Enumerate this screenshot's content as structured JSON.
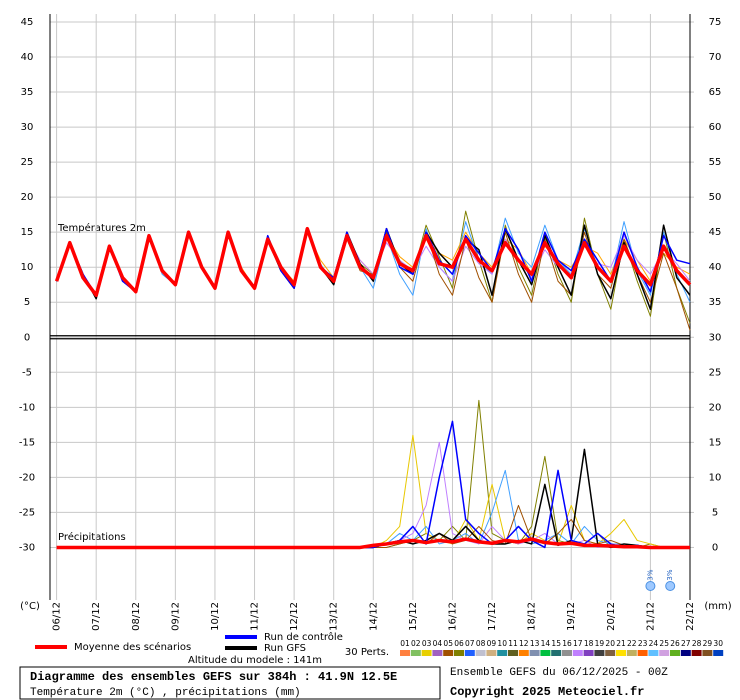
{
  "chart_data": {
    "type": "line",
    "annotations": {
      "temperature": "Températures 2m",
      "precipitation": "Précipitations"
    },
    "y_unit": "(°C)",
    "y2_unit": "(mm)",
    "grid": true,
    "x": [
      0,
      8,
      16,
      24,
      32,
      40,
      48,
      56,
      64,
      72,
      80,
      88,
      96,
      104,
      112,
      120,
      128,
      136,
      144,
      152,
      160,
      168,
      176,
      184,
      192,
      200,
      208,
      216,
      224,
      232,
      240,
      248,
      256,
      264,
      272,
      280,
      288,
      296,
      304,
      312,
      320,
      328,
      336,
      344,
      352,
      360,
      368,
      376,
      384
    ],
    "xlim": [
      -4,
      384
    ],
    "xticks": [
      {
        "value": 0,
        "label": "06/12"
      },
      {
        "value": 24,
        "label": "07/12"
      },
      {
        "value": 48,
        "label": "08/12"
      },
      {
        "value": 72,
        "label": "09/12"
      },
      {
        "value": 96,
        "label": "10/12"
      },
      {
        "value": 120,
        "label": "11/12"
      },
      {
        "value": 144,
        "label": "12/12"
      },
      {
        "value": 168,
        "label": "13/12"
      },
      {
        "value": 192,
        "label": "14/12"
      },
      {
        "value": 216,
        "label": "15/12"
      },
      {
        "value": 240,
        "label": "16/12"
      },
      {
        "value": 264,
        "label": "17/12"
      },
      {
        "value": 288,
        "label": "18/12"
      },
      {
        "value": 312,
        "label": "19/12"
      },
      {
        "value": 336,
        "label": "20/12"
      },
      {
        "value": 360,
        "label": "21/12"
      },
      {
        "value": 384,
        "label": "22/12"
      }
    ],
    "ylim": [
      -37.5,
      45
    ],
    "yticks": [
      -30,
      -25,
      -20,
      -15,
      -10,
      -5,
      0,
      5,
      10,
      15,
      20,
      25,
      30,
      35,
      40,
      45
    ],
    "y2lim": [
      -7.5,
      75
    ],
    "y2ticks": [
      0,
      5,
      10,
      15,
      20,
      25,
      30,
      35,
      40,
      45,
      50,
      55,
      60,
      65,
      70,
      75
    ],
    "series": [
      {
        "color": "#808000",
        "values": [
          8,
          13.5,
          8.5,
          6,
          13,
          8,
          6.5,
          14.5,
          9.5,
          7.5,
          15,
          10,
          7,
          15,
          9.5,
          7,
          14.5,
          10,
          7.5,
          15.5,
          10,
          8,
          14.5,
          10.5,
          9,
          15,
          11,
          9,
          16,
          11.5,
          7,
          18,
          11,
          5,
          16,
          10,
          6,
          15,
          9,
          5,
          17,
          9,
          4,
          14,
          8,
          3,
          15,
          7,
          2
        ]
      },
      {
        "color": "#ffa500",
        "values": [
          8,
          13.5,
          9,
          6,
          13,
          8.5,
          6.5,
          14,
          9.5,
          7.5,
          15,
          10,
          7,
          15,
          10,
          7,
          14,
          10,
          8,
          15,
          11,
          8.5,
          14,
          11,
          9,
          14.5,
          11.5,
          10,
          14,
          12,
          11,
          15,
          12,
          10,
          14,
          12.5,
          9,
          13,
          11,
          10,
          13,
          12,
          9,
          14,
          11,
          8,
          12,
          10,
          9
        ]
      },
      {
        "color": "#40a0ff",
        "values": [
          8,
          13.5,
          8.5,
          6,
          13,
          8,
          6.5,
          14.5,
          9,
          7.5,
          15,
          10,
          7,
          15,
          9.5,
          7,
          14,
          9.5,
          7,
          15,
          10.5,
          7.5,
          14,
          10,
          7,
          14.5,
          9,
          6,
          15.5,
          10,
          8,
          16.5,
          11,
          9,
          17,
          12,
          10,
          16,
          11,
          9,
          15.5,
          10,
          8,
          16.5,
          9.5,
          6,
          15,
          9,
          5
        ]
      },
      {
        "color": "#c080ff",
        "values": [
          8,
          13.5,
          9,
          6,
          13,
          8.5,
          6.5,
          14.5,
          9.5,
          7.5,
          15,
          10,
          7,
          15,
          9.5,
          7,
          14,
          10,
          7.5,
          15,
          10,
          8.5,
          14.5,
          11,
          9,
          13.5,
          11,
          9.5,
          13,
          10,
          8,
          13,
          10.5,
          9,
          14,
          11,
          8.5,
          12.5,
          10,
          9,
          13,
          10.5,
          10,
          14.5,
          11,
          9,
          12.5,
          10.5,
          8
        ]
      },
      {
        "color": "#a05000",
        "values": [
          8,
          13.5,
          8.5,
          6,
          13,
          8,
          6.5,
          14.5,
          9.5,
          7.5,
          15,
          10,
          7,
          15,
          9.5,
          7,
          14,
          9.5,
          7,
          15,
          10,
          8,
          14,
          9.5,
          9,
          15,
          10,
          8,
          15,
          9,
          6,
          14,
          8.5,
          5,
          15,
          9,
          5,
          14,
          8,
          6,
          15,
          9,
          7,
          14,
          9,
          5,
          12,
          7,
          1
        ]
      },
      {
        "color": "#808000",
        "axis": "y2",
        "values": [
          null,
          null,
          null,
          null,
          null,
          null,
          null,
          null,
          null,
          null,
          null,
          null,
          null,
          null,
          null,
          null,
          null,
          null,
          0,
          0,
          0,
          0,
          0,
          0,
          0,
          0,
          0.5,
          1,
          2,
          1,
          3,
          1,
          21,
          2,
          1,
          0.5,
          3,
          13,
          1,
          0.5,
          0.5,
          2,
          0,
          0,
          0,
          0.5,
          0,
          0,
          0
        ]
      },
      {
        "color": "#e8c800",
        "axis": "y2",
        "values": [
          null,
          null,
          null,
          null,
          null,
          null,
          null,
          null,
          null,
          null,
          null,
          null,
          null,
          null,
          null,
          null,
          null,
          null,
          0,
          0,
          0,
          0,
          0,
          0,
          0,
          1,
          3,
          16,
          2,
          1,
          0.5,
          4,
          1,
          9,
          1,
          0.5,
          2,
          1,
          0.5,
          6,
          1,
          0.5,
          2,
          4,
          1,
          0.5,
          0,
          0,
          0
        ]
      },
      {
        "color": "#40a0ff",
        "axis": "y2",
        "values": [
          null,
          null,
          null,
          null,
          null,
          null,
          null,
          null,
          null,
          null,
          null,
          null,
          null,
          null,
          null,
          null,
          null,
          null,
          0,
          0,
          0,
          0,
          0,
          0,
          0,
          0.5,
          2,
          1,
          3,
          0.5,
          1,
          2,
          0.5,
          5,
          11,
          1,
          0.5,
          1,
          2,
          0.5,
          3,
          1,
          0.5,
          0.5,
          0.3,
          0,
          0,
          0,
          0
        ]
      },
      {
        "color": "#c080ff",
        "axis": "y2",
        "values": [
          null,
          null,
          null,
          null,
          null,
          null,
          null,
          null,
          null,
          null,
          null,
          null,
          null,
          null,
          null,
          null,
          null,
          null,
          0,
          0,
          0,
          0,
          0,
          0,
          0,
          0.5,
          1,
          2,
          6,
          15,
          2,
          1,
          0.5,
          3,
          1,
          0.5,
          1,
          2,
          0.5,
          0.5,
          1,
          0,
          0.5,
          0.3,
          0,
          0,
          0,
          0,
          0
        ]
      },
      {
        "color": "#a05000",
        "axis": "y2",
        "values": [
          null,
          null,
          null,
          null,
          null,
          null,
          null,
          null,
          null,
          null,
          null,
          null,
          null,
          null,
          null,
          null,
          null,
          null,
          0,
          0,
          0,
          0,
          0,
          0,
          0,
          0,
          0.5,
          1,
          0.5,
          2,
          0.5,
          1,
          3,
          1,
          0.5,
          6,
          1,
          0.5,
          2,
          4,
          1,
          0.5,
          1,
          0.3,
          0,
          0,
          0,
          0,
          0
        ]
      },
      {
        "name": "Run GFS",
        "color": "#000000",
        "values": [
          8,
          13.5,
          9,
          5.5,
          13,
          8.5,
          6.5,
          14.5,
          9.5,
          7.5,
          15,
          10,
          7,
          15,
          9.5,
          7,
          14,
          9.5,
          7,
          15.5,
          10,
          7.5,
          15,
          10.5,
          8,
          15.5,
          10.5,
          9,
          15,
          12,
          10,
          14,
          12.5,
          6,
          15.5,
          11,
          7.5,
          14.5,
          10,
          6,
          16,
          9,
          5.5,
          13.5,
          9,
          4,
          16,
          8.5,
          6
        ]
      },
      {
        "color": "#000000",
        "axis": "y2",
        "values": [
          null,
          null,
          null,
          null,
          null,
          null,
          null,
          null,
          null,
          null,
          null,
          null,
          null,
          null,
          null,
          null,
          null,
          null,
          0,
          0,
          0,
          0,
          0,
          0,
          0,
          0.5,
          1,
          0.5,
          1,
          2,
          1,
          3,
          1,
          0.5,
          0.5,
          1,
          0.5,
          9,
          0.3,
          1,
          14,
          0.5,
          0,
          0.5,
          0.3,
          0,
          0,
          0,
          0
        ]
      },
      {
        "name": "Run de contrôle",
        "color": "#0000ff",
        "values": [
          8,
          13.5,
          9,
          6,
          13,
          8,
          6.5,
          14.5,
          9.5,
          7.5,
          15,
          10,
          7,
          15,
          9.5,
          7,
          14.5,
          9.5,
          7,
          15.5,
          10,
          8.5,
          15,
          10,
          8.5,
          15.5,
          10,
          9,
          15,
          11,
          9,
          14.5,
          12,
          9.5,
          15.5,
          12.5,
          8,
          15,
          11,
          9.5,
          14,
          11,
          8,
          15,
          10,
          6.5,
          14.5,
          11,
          10.5
        ]
      },
      {
        "color": "#0000ff",
        "axis": "y2",
        "values": [
          null,
          null,
          null,
          null,
          null,
          null,
          null,
          null,
          null,
          null,
          null,
          null,
          null,
          null,
          null,
          null,
          null,
          null,
          0,
          0,
          0,
          0,
          0,
          0,
          0,
          0.5,
          1,
          3,
          0.5,
          10,
          18,
          4,
          2,
          0.5,
          1,
          3,
          1,
          0,
          11,
          1,
          0.5,
          2,
          0.5,
          0,
          0.3,
          0,
          0,
          0,
          0
        ]
      },
      {
        "name": "Moyenne des scénarios",
        "color": "#ff0000",
        "values": [
          8,
          13.5,
          8.5,
          6,
          13,
          8.5,
          6.5,
          14.5,
          9.5,
          7.5,
          15,
          10,
          7,
          15,
          9.5,
          7,
          14,
          10,
          7.5,
          15.5,
          10,
          8,
          14.5,
          10,
          8.5,
          14.5,
          10.5,
          9.5,
          14.5,
          10.5,
          10,
          14,
          11,
          9.5,
          13.5,
          11,
          9,
          13.5,
          10.5,
          8.5,
          13.5,
          10,
          8,
          13,
          9.5,
          7.5,
          13,
          9.5,
          7.5
        ]
      },
      {
        "color": "#ff0000",
        "axis": "y2",
        "values": [
          0,
          0,
          0,
          0,
          0,
          0,
          0,
          0,
          0,
          0,
          0,
          0,
          0,
          0,
          0,
          0,
          0,
          0,
          0,
          0,
          0,
          0,
          0,
          0,
          0.3,
          0.5,
          0.8,
          1,
          0.7,
          1,
          0.8,
          1.2,
          0.8,
          0.6,
          1,
          0.8,
          1.2,
          0.7,
          0.5,
          0.6,
          0.3,
          0.3,
          0.2,
          0.1,
          0.1,
          0,
          0,
          0,
          0
        ]
      }
    ],
    "snow": {
      "x": [
        360,
        372
      ],
      "labels": [
        "3%",
        "3%"
      ]
    }
  },
  "legend": {
    "altitude": "Altitude du modele : 141m",
    "perturbations_title": "30 Perts.",
    "perturbations": [
      {
        "label": "01",
        "color": "#ff8040"
      },
      {
        "label": "02",
        "color": "#80c060"
      },
      {
        "label": "03",
        "color": "#e8d000"
      },
      {
        "label": "04",
        "color": "#a060c0"
      },
      {
        "label": "05",
        "color": "#a05000"
      },
      {
        "label": "06",
        "color": "#808000"
      },
      {
        "label": "07",
        "color": "#2060ff"
      },
      {
        "label": "08",
        "color": "#c0c0d0"
      },
      {
        "label": "09",
        "color": "#d0b080"
      },
      {
        "label": "10",
        "color": "#2090a0"
      },
      {
        "label": "11",
        "color": "#606020"
      },
      {
        "label": "12",
        "color": "#ff8000"
      },
      {
        "label": "13",
        "color": "#8090b0"
      },
      {
        "label": "14",
        "color": "#00c040"
      },
      {
        "label": "15",
        "color": "#207070"
      },
      {
        "label": "16",
        "color": "#909090"
      },
      {
        "label": "17",
        "color": "#c080ff"
      },
      {
        "label": "18",
        "color": "#8040c0"
      },
      {
        "label": "19",
        "color": "#404040"
      },
      {
        "label": "20",
        "color": "#806040"
      },
      {
        "label": "21",
        "color": "#ffe000"
      },
      {
        "label": "22",
        "color": "#c0b060"
      },
      {
        "label": "23",
        "color": "#ff6000"
      },
      {
        "label": "24",
        "color": "#60c0ff"
      },
      {
        "label": "25",
        "color": "#d0a0e0"
      },
      {
        "label": "26",
        "color": "#60b020"
      },
      {
        "label": "27",
        "color": "#000080"
      },
      {
        "label": "28",
        "color": "#800000"
      },
      {
        "label": "29",
        "color": "#805020"
      },
      {
        "label": "30",
        "color": "#0040c0"
      }
    ]
  },
  "footer": {
    "title": "Diagramme des ensembles GEFS sur 384h : 41.9N 12.5E",
    "subtitle": "Température 2m (°C) , précipitations (mm)",
    "run": "Ensemble GEFS du 06/12/2025 - 00Z",
    "copyright": "Copyright 2025 Meteociel.fr"
  }
}
